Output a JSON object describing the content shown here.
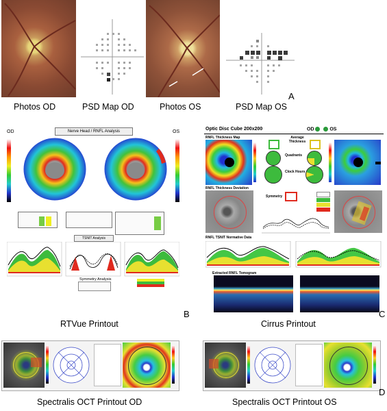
{
  "panel_a": {
    "captions": [
      "Photos OD",
      "PSD Map OD",
      "Photos OS",
      "PSD Map OS"
    ],
    "letter": "A"
  },
  "panel_b": {
    "title": "Nerve Head / RNFL Analysis",
    "od_label": "OD",
    "os_label": "OS",
    "tsnit_title": "TSNIT Analysis",
    "symmetry_title": "Symmetry Analysis",
    "caption": "RTVue Printout",
    "letter": "B"
  },
  "panel_c": {
    "title": "Optic Disc Cube 200x200",
    "od_label": "OD",
    "os_label": "OS",
    "thickness_map": "RNFL Thickness Map",
    "avg_label": "Average Thickness",
    "quadrants_label": "Quadrants",
    "clock_label": "Clock Hours",
    "deviation_label": "RNFL Thickness Deviation",
    "symmetry_label": "Symmetry",
    "tsnit_label": "RNFL TSNIT Normative Data",
    "tomogram_label": "Extracted RNFL Tomogram",
    "caption": "Cirrus Printout",
    "letter": "C"
  },
  "panel_d": {
    "caption_od": "Spectralis OCT Printout OD",
    "caption_os": "Spectralis OCT Printout OS",
    "letter": "D"
  },
  "colors": {
    "fundus": "#b06a48",
    "rnfl_red": "#e23b2a",
    "rnfl_green": "#3dbb3d",
    "rnfl_blue": "#2a4cd8"
  }
}
